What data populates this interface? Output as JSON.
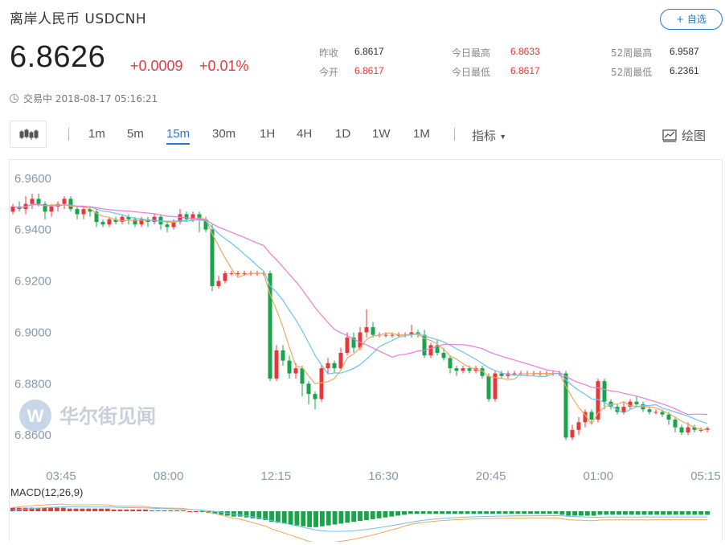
{
  "header": {
    "title": "离岸人民币  USDCNH",
    "favorite_label": "+ 自选"
  },
  "quote": {
    "price": "6.8626",
    "change": "+0.0009",
    "change_pct": "+0.01%",
    "stats": [
      {
        "label": "昨收",
        "value": "6.8617",
        "color": "normal"
      },
      {
        "label": "今开",
        "value": "6.8617",
        "color": "red"
      },
      {
        "label": "今日最高",
        "value": "6.8633",
        "color": "red"
      },
      {
        "label": "今日最低",
        "value": "6.8617",
        "color": "red"
      },
      {
        "label": "52周最高",
        "value": "6.9587",
        "color": "normal"
      },
      {
        "label": "52周最低",
        "value": "6.2361",
        "color": "normal"
      }
    ],
    "status": "交易中 2018-08-17 05:16:21"
  },
  "toolbar": {
    "intervals": [
      "1m",
      "5m",
      "15m",
      "30m",
      "1H",
      "4H",
      "1D",
      "1W",
      "1M"
    ],
    "active_interval": "15m",
    "indicator_label": "指标",
    "draw_label": "绘图"
  },
  "watermark": "华尔街见闻",
  "colors": {
    "up": "#e5383b",
    "down": "#1aa34a",
    "ma5": "#f0a860",
    "ma10": "#6ec1ee",
    "ma20": "#ee7ad8",
    "accent": "#2a7ac9"
  },
  "chart_data": {
    "type": "candlestick",
    "yticks": [
      "6.9600",
      "6.9400",
      "6.9200",
      "6.9000",
      "6.8800",
      "6.8600"
    ],
    "ylim": [
      6.856,
      6.964
    ],
    "xticks": [
      "03:45",
      "08:00",
      "12:15",
      "16:30",
      "20:45",
      "01:00",
      "05:15"
    ],
    "candles": [
      [
        6.947,
        6.949,
        6.946,
        6.95
      ],
      [
        6.949,
        6.948,
        6.947,
        6.951
      ],
      [
        6.948,
        6.95,
        6.946,
        6.953
      ],
      [
        6.95,
        6.952,
        6.948,
        6.954
      ],
      [
        6.952,
        6.95,
        6.949,
        6.954
      ],
      [
        6.95,
        6.947,
        6.944,
        6.951
      ],
      [
        6.947,
        6.949,
        6.945,
        6.95
      ],
      [
        6.949,
        6.95,
        6.947,
        6.951
      ],
      [
        6.95,
        6.952,
        6.948,
        6.953
      ],
      [
        6.952,
        6.948,
        6.947,
        6.953
      ],
      [
        6.948,
        6.946,
        6.944,
        6.949
      ],
      [
        6.946,
        6.948,
        6.944,
        6.949
      ],
      [
        6.948,
        6.947,
        6.945,
        6.949
      ],
      [
        6.947,
        6.943,
        6.941,
        6.948
      ],
      [
        6.943,
        6.942,
        6.941,
        6.944
      ],
      [
        6.942,
        6.944,
        6.941,
        6.945
      ],
      [
        6.944,
        6.943,
        6.942,
        6.945
      ],
      [
        6.943,
        6.945,
        6.942,
        6.946
      ],
      [
        6.945,
        6.944,
        6.942,
        6.946
      ],
      [
        6.944,
        6.942,
        6.941,
        6.945
      ],
      [
        6.942,
        6.944,
        6.941,
        6.945
      ],
      [
        6.944,
        6.943,
        6.941,
        6.945
      ],
      [
        6.943,
        6.945,
        6.942,
        6.946
      ],
      [
        6.945,
        6.942,
        6.94,
        6.946
      ],
      [
        6.942,
        6.941,
        6.939,
        6.943
      ],
      [
        6.941,
        6.943,
        6.94,
        6.944
      ],
      [
        6.943,
        6.946,
        6.942,
        6.948
      ],
      [
        6.946,
        6.944,
        6.943,
        6.947
      ],
      [
        6.944,
        6.946,
        6.943,
        6.947
      ],
      [
        6.946,
        6.944,
        6.939,
        6.947
      ],
      [
        6.944,
        6.94,
        6.939,
        6.945
      ],
      [
        6.94,
        6.918,
        6.916,
        6.942
      ],
      [
        6.918,
        6.92,
        6.917,
        6.922
      ],
      [
        6.92,
        6.923,
        6.919,
        6.924
      ],
      [
        6.923,
        6.923,
        6.922,
        6.924
      ],
      [
        6.923,
        6.923,
        6.922,
        6.924
      ],
      [
        6.923,
        6.923,
        6.922,
        6.924
      ],
      [
        6.923,
        6.923,
        6.922,
        6.924
      ],
      [
        6.923,
        6.923,
        6.922,
        6.924
      ],
      [
        6.923,
        6.923,
        6.922,
        6.924
      ],
      [
        6.923,
        6.882,
        6.881,
        6.924
      ],
      [
        6.882,
        6.893,
        6.881,
        6.895
      ],
      [
        6.893,
        6.889,
        6.887,
        6.895
      ],
      [
        6.889,
        6.884,
        6.882,
        6.891
      ],
      [
        6.884,
        6.886,
        6.882,
        6.888
      ],
      [
        6.886,
        6.88,
        6.875,
        6.887
      ],
      [
        6.88,
        6.876,
        6.872,
        6.881
      ],
      [
        6.876,
        6.874,
        6.87,
        6.877
      ],
      [
        6.874,
        6.886,
        6.873,
        6.887
      ],
      [
        6.886,
        6.888,
        6.884,
        6.89
      ],
      [
        6.888,
        6.886,
        6.884,
        6.889
      ],
      [
        6.886,
        6.892,
        6.885,
        6.894
      ],
      [
        6.892,
        6.898,
        6.891,
        6.9
      ],
      [
        6.898,
        6.894,
        6.892,
        6.9
      ],
      [
        6.894,
        6.9,
        6.893,
        6.902
      ],
      [
        6.9,
        6.902,
        6.898,
        6.909
      ],
      [
        6.902,
        6.899,
        6.898,
        6.904
      ],
      [
        6.899,
        6.899,
        6.898,
        6.9
      ],
      [
        6.899,
        6.899,
        6.898,
        6.9
      ],
      [
        6.899,
        6.899,
        6.898,
        6.9
      ],
      [
        6.899,
        6.899,
        6.898,
        6.9
      ],
      [
        6.899,
        6.899,
        6.898,
        6.9
      ],
      [
        6.899,
        6.9,
        6.898,
        6.903
      ],
      [
        6.9,
        6.899,
        6.898,
        6.901
      ],
      [
        6.899,
        6.891,
        6.89,
        6.901
      ],
      [
        6.891,
        6.895,
        6.89,
        6.896
      ],
      [
        6.895,
        6.892,
        6.891,
        6.897
      ],
      [
        6.892,
        6.89,
        6.889,
        6.894
      ],
      [
        6.89,
        6.886,
        6.884,
        6.891
      ],
      [
        6.886,
        6.885,
        6.883,
        6.887
      ],
      [
        6.885,
        6.886,
        6.884,
        6.887
      ],
      [
        6.886,
        6.885,
        6.884,
        6.887
      ],
      [
        6.885,
        6.886,
        6.884,
        6.887
      ],
      [
        6.886,
        6.883,
        6.882,
        6.887
      ],
      [
        6.883,
        6.874,
        6.873,
        6.884
      ],
      [
        6.874,
        6.884,
        6.873,
        6.885
      ],
      [
        6.884,
        6.883,
        6.882,
        6.885
      ],
      [
        6.883,
        6.884,
        6.882,
        6.885
      ],
      [
        6.884,
        6.884,
        6.883,
        6.885
      ],
      [
        6.884,
        6.884,
        6.883,
        6.885
      ],
      [
        6.884,
        6.884,
        6.883,
        6.885
      ],
      [
        6.884,
        6.884,
        6.883,
        6.885
      ],
      [
        6.884,
        6.884,
        6.883,
        6.885
      ],
      [
        6.884,
        6.884,
        6.883,
        6.885
      ],
      [
        6.884,
        6.884,
        6.883,
        6.885
      ],
      [
        6.884,
        6.884,
        6.883,
        6.885
      ],
      [
        6.884,
        6.859,
        6.858,
        6.885
      ],
      [
        6.859,
        6.862,
        6.858,
        6.864
      ],
      [
        6.862,
        6.865,
        6.86,
        6.867
      ],
      [
        6.865,
        6.869,
        6.863,
        6.87
      ],
      [
        6.869,
        6.866,
        6.864,
        6.87
      ],
      [
        6.866,
        6.881,
        6.865,
        6.882
      ],
      [
        6.881,
        6.873,
        6.87,
        6.882
      ],
      [
        6.873,
        6.871,
        6.87,
        6.874
      ],
      [
        6.871,
        6.869,
        6.868,
        6.872
      ],
      [
        6.869,
        6.871,
        6.868,
        6.873
      ],
      [
        6.871,
        6.873,
        6.87,
        6.874
      ],
      [
        6.873,
        6.872,
        6.871,
        6.875
      ],
      [
        6.872,
        6.87,
        6.869,
        6.873
      ],
      [
        6.87,
        6.869,
        6.868,
        6.871
      ],
      [
        6.869,
        6.869,
        6.868,
        6.87
      ],
      [
        6.869,
        6.868,
        6.867,
        6.87
      ],
      [
        6.868,
        6.866,
        6.864,
        6.869
      ],
      [
        6.866,
        6.863,
        6.861,
        6.867
      ],
      [
        6.863,
        6.861,
        6.86,
        6.864
      ],
      [
        6.861,
        6.863,
        6.86,
        6.865
      ],
      [
        6.863,
        6.862,
        6.861,
        6.864
      ],
      [
        6.862,
        6.862,
        6.861,
        6.863
      ],
      [
        6.862,
        6.8626,
        6.861,
        6.8633
      ]
    ],
    "macd": {
      "label": "MACD(12,26,9)",
      "hist": [
        4,
        4,
        4,
        4,
        4,
        4,
        4,
        4,
        4,
        3,
        3,
        3,
        3,
        3,
        3,
        3,
        2,
        2,
        2,
        2,
        2,
        2,
        1,
        1,
        1,
        1,
        1,
        1,
        0,
        0,
        -1,
        -2,
        -3,
        -4,
        -5,
        -6,
        -6,
        -7,
        -8,
        -9,
        -10,
        -12,
        -13,
        -14,
        -15,
        -16,
        -17,
        -18,
        -18,
        -17,
        -16,
        -15,
        -14,
        -13,
        -12,
        -11,
        -10,
        -9,
        -8,
        -7,
        -6,
        -5,
        -4,
        -3,
        -3,
        -3,
        -3,
        -3,
        -3,
        -3,
        -3,
        -3,
        -3,
        -3,
        -3,
        -3,
        -3,
        -3,
        -3,
        -3,
        -3,
        -3,
        -3,
        -3,
        -3,
        -3,
        -3,
        -4,
        -5,
        -5,
        -5,
        -5,
        -5,
        -4,
        -4,
        -4,
        -4,
        -4,
        -4,
        -4,
        -4,
        -4,
        -4,
        -4,
        -4,
        -4,
        -4,
        -4,
        -4,
        -4,
        -4
      ]
    }
  }
}
